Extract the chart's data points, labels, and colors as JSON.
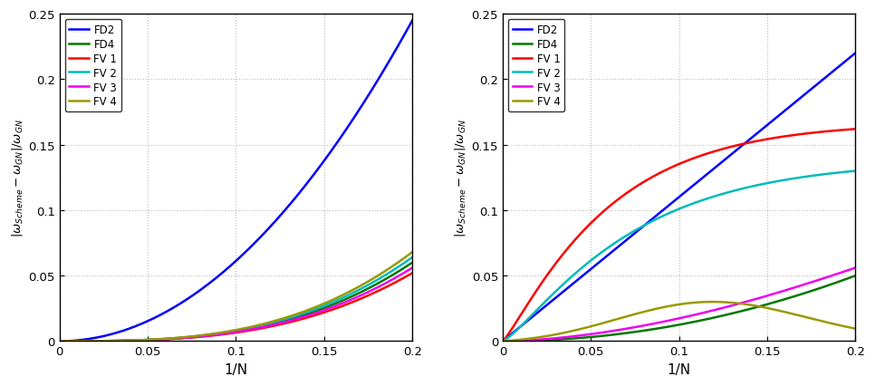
{
  "xlim": [
    0,
    0.2
  ],
  "ylim": [
    0,
    0.25
  ],
  "xlabel": "1/N",
  "colors": {
    "FD2": "#0000FF",
    "FD4": "#007700",
    "FV1": "#FF0000",
    "FV2": "#00BBBB",
    "FV3": "#EE00EE",
    "FV4": "#999900"
  },
  "legend_labels": [
    "FD2",
    "FD4",
    "FV 1",
    "FV 2",
    "FV 3",
    "FV 4"
  ],
  "grid_color": "#BBBBBB",
  "background_color": "#FFFFFF",
  "xticks": [
    0,
    0.05,
    0.1,
    0.15,
    0.2
  ],
  "yticks": [
    0,
    0.05,
    0.1,
    0.15,
    0.2,
    0.25
  ]
}
